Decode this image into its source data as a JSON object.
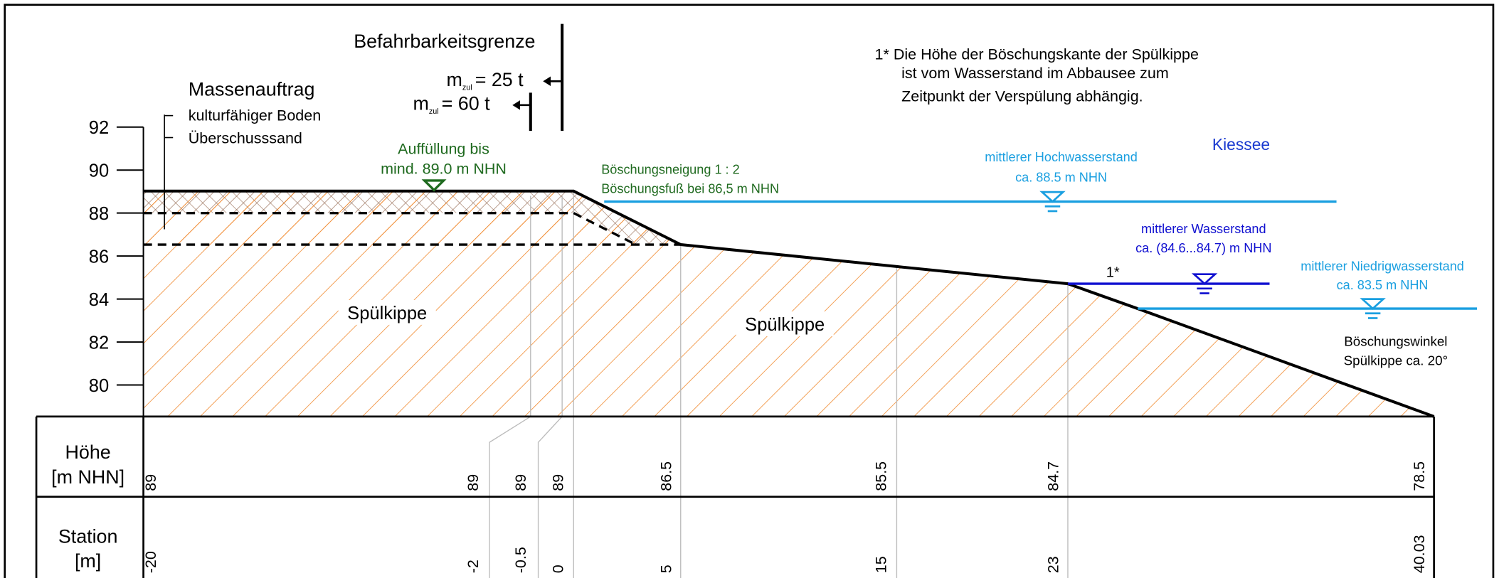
{
  "header": {
    "title": "Befahrbarkeitsgrenze",
    "limit_1": {
      "symbol": "m",
      "sub": "zul",
      "text": "= 25 t"
    },
    "limit_2": {
      "symbol": "m",
      "sub": "zul",
      "text": "= 60 t"
    }
  },
  "note": {
    "lines": [
      "1*  Die Höhe der Böschungskante der Spülkippe",
      "ist vom Wasserstand im Abbausee zum",
      "Zeitpunkt der Verspülung abhängig."
    ]
  },
  "fill_legend": {
    "title": "Massenauftrag",
    "items": [
      "kulturfähiger Boden",
      "Überschusssand"
    ]
  },
  "fill_level": [
    "Auffüllung bis",
    "mind. 89.0 m NHN"
  ],
  "slope": [
    "Böschungsneigung 1 : 2",
    "Böschungsfuß bei 86,5 m NHN"
  ],
  "high_water": [
    "mittlerer Hochwasserstand",
    "ca. 88.5 m NHN"
  ],
  "lake": "Kiessee",
  "mean_water": [
    "mittlerer Wasserstand",
    "ca. (84.6...84.7) m NHN"
  ],
  "edge_mark": "1*",
  "low_water": [
    "mittlerer Niedrigwasserstand",
    "ca. 83.5 m NHN"
  ],
  "angle": [
    "Böschungswinkel",
    "Spülkippe ca. 20°"
  ],
  "zones": [
    "Spülkippe",
    "Spülkippe"
  ],
  "y_axis": [
    "92",
    "90",
    "88",
    "86",
    "84",
    "82",
    "80"
  ],
  "table": {
    "rows": [
      {
        "header": [
          "Höhe",
          "[m NHN]"
        ],
        "values": [
          "89",
          "89",
          "89",
          "89",
          "86.5",
          "85.5",
          "84.7",
          "78.5"
        ]
      },
      {
        "header": [
          "Station",
          "[m]"
        ],
        "values": [
          "-20",
          "-2",
          "-0.5",
          "0",
          "5",
          "15",
          "23",
          "40.03"
        ]
      }
    ]
  }
}
